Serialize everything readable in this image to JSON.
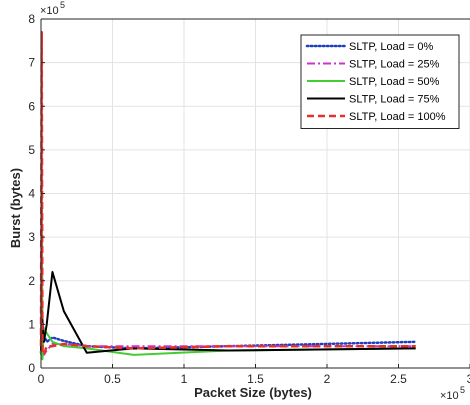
{
  "chart_data": {
    "type": "line",
    "title": "",
    "xlabel": "Packet Size (bytes)",
    "ylabel": "Burst (bytes)",
    "x_multiplier": "×10^5",
    "y_multiplier": "×10^5",
    "xlim": [
      0,
      3
    ],
    "ylim": [
      0,
      8
    ],
    "xticks": [
      "0",
      "0.5",
      "1",
      "1.5",
      "2",
      "2.5",
      "3"
    ],
    "yticks": [
      "0",
      "1",
      "2",
      "3",
      "4",
      "5",
      "6",
      "7",
      "8"
    ],
    "grid": true,
    "legend_position": "top-right",
    "series": [
      {
        "name": "SLTP, Load = 0%",
        "color": "#1f3fbf",
        "dash": "dotted",
        "x": [
          0.0,
          0.003,
          0.006,
          0.01,
          0.02,
          0.04,
          0.08,
          0.16,
          0.32,
          0.65,
          1.31,
          2.62
        ],
        "y": [
          0.35,
          0.55,
          0.9,
          1.1,
          0.75,
          0.6,
          0.7,
          0.62,
          0.5,
          0.45,
          0.5,
          0.6
        ]
      },
      {
        "name": "SLTP, Load = 25%",
        "color": "#cc33cc",
        "dash": "dashdot",
        "x": [
          0.0,
          0.005,
          0.01,
          0.02,
          0.04,
          0.08,
          0.16,
          0.32,
          0.65,
          1.31,
          2.62
        ],
        "y": [
          0.5,
          5.2,
          0.6,
          0.3,
          0.4,
          0.55,
          0.55,
          0.5,
          0.5,
          0.5,
          0.5
        ]
      },
      {
        "name": "SLTP, Load = 50%",
        "color": "#44cc33",
        "dash": "solid",
        "x": [
          0.0,
          0.005,
          0.01,
          0.02,
          0.04,
          0.08,
          0.16,
          0.32,
          0.65,
          1.31,
          2.62
        ],
        "y": [
          0.3,
          4.0,
          0.2,
          0.9,
          0.8,
          0.6,
          0.5,
          0.45,
          0.3,
          0.4,
          0.45
        ]
      },
      {
        "name": "SLTP, Load = 75%",
        "color": "#000000",
        "dash": "solid",
        "x": [
          0.0,
          0.005,
          0.01,
          0.02,
          0.04,
          0.08,
          0.16,
          0.32,
          0.65,
          1.31,
          2.62
        ],
        "y": [
          0.4,
          1.3,
          1.0,
          0.6,
          1.0,
          2.2,
          1.3,
          0.35,
          0.45,
          0.4,
          0.45
        ]
      },
      {
        "name": "SLTP, Load = 100%",
        "color": "#e8302a",
        "dash": "dashed",
        "x": [
          0.0,
          0.005,
          0.01,
          0.02,
          0.04,
          0.08,
          0.16,
          0.32,
          0.65,
          1.31,
          2.62
        ],
        "y": [
          0.5,
          7.7,
          0.4,
          0.3,
          0.5,
          0.5,
          0.55,
          0.5,
          0.45,
          0.5,
          0.5
        ]
      }
    ]
  }
}
